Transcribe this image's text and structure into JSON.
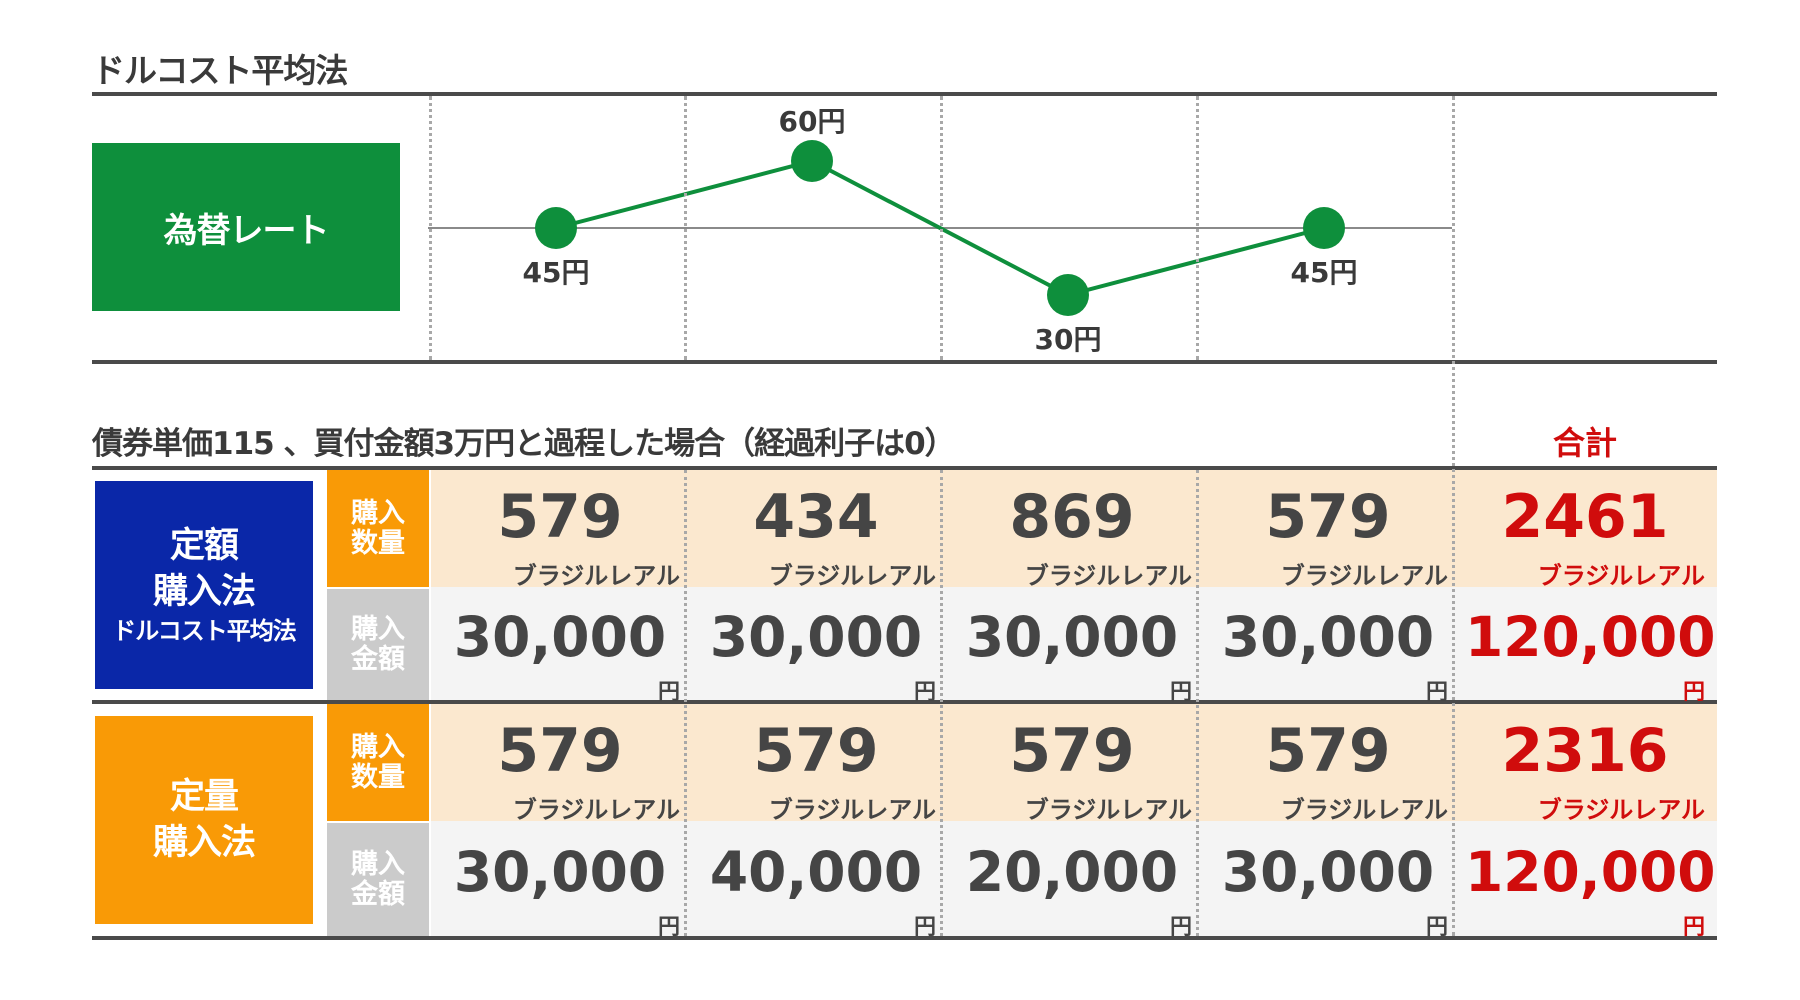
{
  "title": "ドルコスト平均法",
  "rate_label": "為替レート",
  "chart_data": {
    "type": "line",
    "x": [
      1,
      2,
      3,
      4
    ],
    "values": [
      45,
      60,
      30,
      45
    ],
    "point_labels": [
      "45円",
      "60円",
      "30円",
      "45円"
    ],
    "reference_line": 45,
    "color": "#0e8f3c"
  },
  "subtitle": "債券単価115 、買付金額3万円と過程した場合（経過利子は0）",
  "total_header": "合計",
  "row_labels": {
    "qty_top": "購入",
    "qty_bottom": "数量",
    "amt_top": "購入",
    "amt_bottom": "金額"
  },
  "units": {
    "qty": "ブラジルレアル",
    "amt": "円"
  },
  "methods": [
    {
      "line1": "定額",
      "line2": "購入法",
      "line3": "ドルコスト平均法",
      "color": "#0a27a8",
      "quantities": [
        "579",
        "434",
        "869",
        "579"
      ],
      "quantity_total": "2461",
      "amounts": [
        "30,000",
        "30,000",
        "30,000",
        "30,000"
      ],
      "amount_total": "120,000"
    },
    {
      "line1": "定量",
      "line2": "購入法",
      "line3": "",
      "color": "#f99a06",
      "quantities": [
        "579",
        "579",
        "579",
        "579"
      ],
      "quantity_total": "2316",
      "amounts": [
        "30,000",
        "40,000",
        "20,000",
        "30,000"
      ],
      "amount_total": "120,000"
    }
  ],
  "colors": {
    "total_red": "#d00c0c",
    "band_qty": "#fbe8cf",
    "band_amt": "#f4f4f4"
  }
}
